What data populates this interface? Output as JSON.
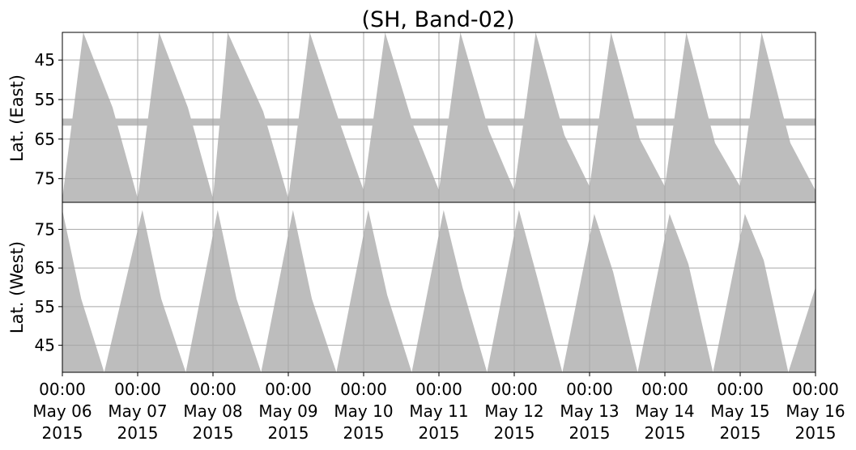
{
  "figure": {
    "title": "(SH, Band-02)"
  },
  "chart_data": [
    {
      "type": "area",
      "panel": "top",
      "title": "(SH, Band-02)",
      "xlabel": "",
      "ylabel": "Lat. (East)",
      "xlim": [
        "2015-05-06 00:00",
        "2015-05-16 00:00"
      ],
      "ylim": [
        38,
        81
      ],
      "y_inverted": true,
      "yticks": [
        45,
        55,
        65,
        75
      ],
      "grid": true,
      "coverage_color": "#bdbdbd",
      "constant_band_lat": [
        59.8,
        61.6
      ],
      "x": [
        "2015-05-06 00:00",
        "2015-05-06 06:40",
        "2015-05-06 16:00",
        "2015-05-07 00:00",
        "2015-05-07 06:50",
        "2015-05-07 16:00",
        "2015-05-08 00:00",
        "2015-05-08 04:40",
        "2015-05-08 16:00",
        "2015-05-09 00:00",
        "2015-05-09 06:50",
        "2015-05-09 16:00",
        "2015-05-10 00:00",
        "2015-05-10 06:50",
        "2015-05-10 16:00",
        "2015-05-11 00:00",
        "2015-05-11 06:50",
        "2015-05-11 16:00",
        "2015-05-12 00:00",
        "2015-05-12 06:50",
        "2015-05-12 16:00",
        "2015-05-13 00:00",
        "2015-05-13 06:50",
        "2015-05-13 16:00",
        "2015-05-14 00:00",
        "2015-05-14 06:50",
        "2015-05-14 16:00",
        "2015-05-15 00:00",
        "2015-05-15 06:50",
        "2015-05-15 16:00",
        "2015-05-16 00:00"
      ],
      "coverage_to_lat": [
        80,
        38,
        57,
        80,
        38,
        57,
        80,
        38,
        58,
        80,
        38,
        60,
        78,
        38,
        62,
        78,
        38,
        63,
        78,
        38,
        64,
        77,
        38,
        65,
        77,
        38,
        66,
        77,
        38,
        66,
        78
      ]
    },
    {
      "type": "area",
      "panel": "bottom",
      "xlabel": "",
      "ylabel": "Lat. (West)",
      "xlim": [
        "2015-05-06 00:00",
        "2015-05-16 00:00"
      ],
      "ylim": [
        38,
        82
      ],
      "yticks": [
        45,
        55,
        65,
        75
      ],
      "grid": true,
      "coverage_color": "#bdbdbd",
      "x": [
        "2015-05-06 00:00",
        "2015-05-06 06:00",
        "2015-05-06 13:20",
        "2015-05-07 01:30",
        "2015-05-07 07:30",
        "2015-05-07 15:20",
        "2015-05-08 01:30",
        "2015-05-08 07:30",
        "2015-05-08 15:20",
        "2015-05-09 01:30",
        "2015-05-09 07:30",
        "2015-05-09 15:20",
        "2015-05-10 01:30",
        "2015-05-10 07:30",
        "2015-05-10 15:20",
        "2015-05-11 01:30",
        "2015-05-11 07:30",
        "2015-05-11 15:20",
        "2015-05-12 01:30",
        "2015-05-12 07:30",
        "2015-05-12 15:20",
        "2015-05-13 01:30",
        "2015-05-13 07:30",
        "2015-05-13 15:20",
        "2015-05-14 01:30",
        "2015-05-14 07:30",
        "2015-05-14 15:20",
        "2015-05-15 01:30",
        "2015-05-15 07:30",
        "2015-05-15 15:20",
        "2015-05-16 00:00"
      ],
      "coverage_to_lat": [
        80,
        57,
        38,
        80,
        57,
        38,
        80,
        57,
        38,
        80,
        57,
        38,
        80,
        58,
        38,
        80,
        60,
        38,
        80,
        62,
        38,
        79,
        64,
        38,
        79,
        66,
        38,
        79,
        67,
        38,
        60
      ]
    }
  ],
  "xaxis": {
    "ticks": [
      {
        "time": "00:00",
        "date": "May 06",
        "year": "2015"
      },
      {
        "time": "00:00",
        "date": "May 07",
        "year": "2015"
      },
      {
        "time": "00:00",
        "date": "May 08",
        "year": "2015"
      },
      {
        "time": "00:00",
        "date": "May 09",
        "year": "2015"
      },
      {
        "time": "00:00",
        "date": "May 10",
        "year": "2015"
      },
      {
        "time": "00:00",
        "date": "May 11",
        "year": "2015"
      },
      {
        "time": "00:00",
        "date": "May 12",
        "year": "2015"
      },
      {
        "time": "00:00",
        "date": "May 13",
        "year": "2015"
      },
      {
        "time": "00:00",
        "date": "May 14",
        "year": "2015"
      },
      {
        "time": "00:00",
        "date": "May 15",
        "year": "2015"
      },
      {
        "time": "00:00",
        "date": "May 16",
        "year": "2015"
      }
    ]
  }
}
